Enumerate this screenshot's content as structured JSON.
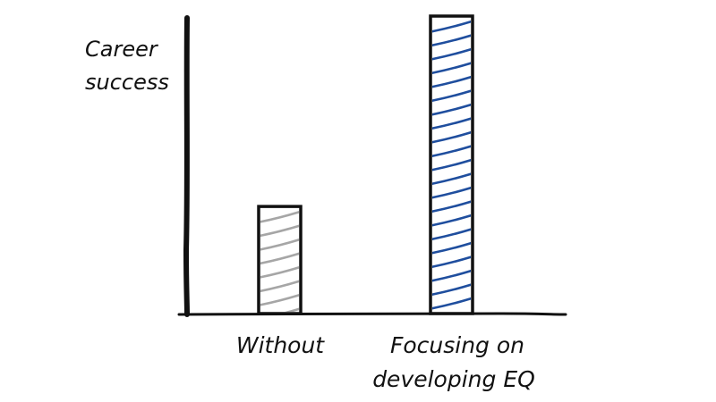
{
  "chart_data": {
    "type": "bar",
    "ylabel": [
      "Career",
      "success"
    ],
    "categories": [
      {
        "label": [
          "Without"
        ]
      },
      {
        "label": [
          "Focusing on",
          "developing EQ"
        ]
      }
    ],
    "values": [
      0.36,
      1.0
    ],
    "ylim": [
      0,
      1
    ],
    "grid": false,
    "legend": "none",
    "colors": {
      "axis": "#111111",
      "bar_outline": "#111111",
      "bar_hatch": [
        "#a6a6a6",
        "#1f4e9e"
      ],
      "background": "#ffffff"
    }
  }
}
